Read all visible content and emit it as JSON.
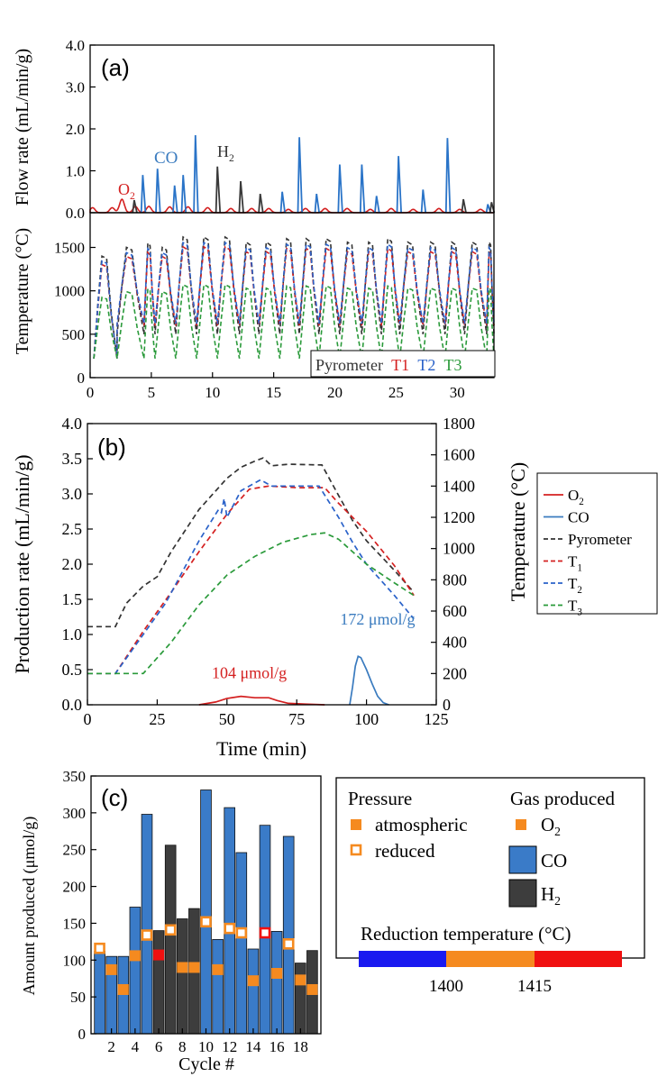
{
  "chart_data": [
    {
      "panel": "(a)",
      "type": "line",
      "xlim": [
        0,
        33
      ],
      "x_ticks": [
        0,
        5,
        10,
        15,
        20,
        25,
        30
      ],
      "top_subplot": {
        "ylabel": "Flow rate (mL/min/g)",
        "ylim": [
          0,
          4
        ],
        "y_ticks": [
          "0.0",
          "1.0",
          "2.0",
          "3.0",
          "4.0"
        ],
        "labels": {
          "o2": "O2",
          "co": "CO",
          "h2": "H2"
        },
        "o2_bumps": [
          {
            "x": 0.2,
            "h": 0.12
          },
          {
            "x": 1.8,
            "h": 0.12
          },
          {
            "x": 2.6,
            "h": 0.32
          },
          {
            "x": 3.7,
            "h": 0.15
          },
          {
            "x": 4.8,
            "h": 0.15
          },
          {
            "x": 6.5,
            "h": 0.14
          },
          {
            "x": 8.0,
            "h": 0.14
          },
          {
            "x": 9.6,
            "h": 0.12
          },
          {
            "x": 11.5,
            "h": 0.1
          },
          {
            "x": 13.2,
            "h": 0.1
          },
          {
            "x": 14.6,
            "h": 0.1
          },
          {
            "x": 16.2,
            "h": 0.08
          },
          {
            "x": 17.6,
            "h": 0.1
          },
          {
            "x": 19.2,
            "h": 0.1
          },
          {
            "x": 21.0,
            "h": 0.1
          },
          {
            "x": 22.9,
            "h": 0.08
          },
          {
            "x": 24.6,
            "h": 0.1
          },
          {
            "x": 26.4,
            "h": 0.08
          },
          {
            "x": 28.5,
            "h": 0.1
          },
          {
            "x": 30.2,
            "h": 0.08
          },
          {
            "x": 31.9,
            "h": 0.08
          }
        ],
        "co_peaks": [
          {
            "x": 4.3,
            "h": 0.9
          },
          {
            "x": 5.5,
            "h": 1.05
          },
          {
            "x": 6.9,
            "h": 0.65
          },
          {
            "x": 7.6,
            "h": 0.9
          },
          {
            "x": 8.6,
            "h": 1.85
          },
          {
            "x": 15.7,
            "h": 0.5
          },
          {
            "x": 17.1,
            "h": 1.8
          },
          {
            "x": 18.5,
            "h": 0.45
          },
          {
            "x": 20.4,
            "h": 1.15
          },
          {
            "x": 22.2,
            "h": 1.15
          },
          {
            "x": 23.4,
            "h": 0.4
          },
          {
            "x": 25.2,
            "h": 1.35
          },
          {
            "x": 27.2,
            "h": 0.55
          },
          {
            "x": 29.2,
            "h": 1.78
          },
          {
            "x": 32.5,
            "h": 0.2
          }
        ],
        "h2_peaks": [
          {
            "x": 3.6,
            "h": 0.3
          },
          {
            "x": 10.4,
            "h": 1.1
          },
          {
            "x": 12.3,
            "h": 0.75
          },
          {
            "x": 13.9,
            "h": 0.45
          },
          {
            "x": 30.5,
            "h": 0.32
          },
          {
            "x": 32.8,
            "h": 0.25
          }
        ]
      },
      "bottom_subplot": {
        "ylabel": "Temperature (°C)",
        "ylim": [
          0,
          1900
        ],
        "y_ticks": [
          "0",
          "500",
          "1000",
          "1500"
        ],
        "legend": [
          {
            "label": "Pyrometer",
            "color": "#333333"
          },
          {
            "label": "T1",
            "color": "#d42020"
          },
          {
            "label": "T2",
            "color": "#2a62c9"
          },
          {
            "label": "T3",
            "color": "#2a9a3a"
          }
        ],
        "cycles": [
          {
            "x0": 0.3,
            "x1": 2.2,
            "peak": 1400
          },
          {
            "x0": 2.2,
            "x1": 4.4,
            "peak": 1500
          },
          {
            "x0": 4.4,
            "x1": 5.3,
            "peak": 1550
          },
          {
            "x0": 5.3,
            "x1": 7.0,
            "peak": 1500
          },
          {
            "x0": 7.0,
            "x1": 8.7,
            "peak": 1620
          },
          {
            "x0": 8.7,
            "x1": 10.4,
            "peak": 1620
          },
          {
            "x0": 10.4,
            "x1": 12.2,
            "peak": 1620
          },
          {
            "x0": 12.2,
            "x1": 13.8,
            "peak": 1560
          },
          {
            "x0": 13.8,
            "x1": 15.5,
            "peak": 1560
          },
          {
            "x0": 15.5,
            "x1": 17.1,
            "peak": 1600
          },
          {
            "x0": 17.1,
            "x1": 18.7,
            "peak": 1600
          },
          {
            "x0": 18.7,
            "x1": 20.4,
            "peak": 1600
          },
          {
            "x0": 20.4,
            "x1": 22.2,
            "peak": 1560
          },
          {
            "x0": 22.2,
            "x1": 23.8,
            "peak": 1560
          },
          {
            "x0": 23.8,
            "x1": 25.3,
            "peak": 1600
          },
          {
            "x0": 25.3,
            "x1": 27.2,
            "peak": 1560
          },
          {
            "x0": 27.2,
            "x1": 29.0,
            "peak": 1560
          },
          {
            "x0": 29.0,
            "x1": 30.6,
            "peak": 1560
          },
          {
            "x0": 30.6,
            "x1": 32.4,
            "peak": 1560
          },
          {
            "x0": 32.4,
            "x1": 33.0,
            "peak": 1560
          }
        ]
      }
    },
    {
      "panel": "(b)",
      "type": "line",
      "xlabel": "Time (min)",
      "ylabel": "Production rate (mL/min/g)",
      "y2label": "Temperature (°C)",
      "xlim": [
        0,
        125
      ],
      "ylim": [
        0,
        4
      ],
      "y2lim": [
        0,
        1800
      ],
      "x_ticks": [
        "0",
        "25",
        "50",
        "75",
        "100",
        "125"
      ],
      "y_ticks": [
        "0.0",
        "0.5",
        "1.0",
        "1.5",
        "2.0",
        "2.5",
        "3.0",
        "3.5",
        "4.0"
      ],
      "y2_ticks": [
        "0",
        "200",
        "400",
        "600",
        "800",
        "1000",
        "1200",
        "1400",
        "1600",
        "1800"
      ],
      "annotations": [
        {
          "text": "104 μmol/g",
          "x": 58,
          "y": 0.38,
          "color": "#d42020"
        },
        {
          "text": "172 μmol/g",
          "x": 104,
          "y": 1.14,
          "color": "#3a7bbf"
        }
      ],
      "legend": [
        {
          "label": "O2",
          "color": "#d42020",
          "style": "solid"
        },
        {
          "label": "CO",
          "color": "#3a7bbf",
          "style": "solid"
        },
        {
          "label": "Pyrometer",
          "color": "#333333",
          "style": "dashed"
        },
        {
          "label": "T1",
          "color": "#d42020",
          "style": "dashed"
        },
        {
          "label": "T2",
          "color": "#2a62c9",
          "style": "dashed"
        },
        {
          "label": "T3",
          "color": "#2a9a3a",
          "style": "dashed"
        }
      ],
      "series": [
        {
          "name": "O2",
          "axis": "left",
          "points": [
            [
              40,
              0
            ],
            [
              46,
              0.04
            ],
            [
              50,
              0.09
            ],
            [
              55,
              0.12
            ],
            [
              60,
              0.1
            ],
            [
              65,
              0.1
            ],
            [
              68,
              0.06
            ],
            [
              72,
              0.02
            ],
            [
              78,
              0.01
            ],
            [
              85,
              0
            ]
          ]
        },
        {
          "name": "CO",
          "axis": "left",
          "points": [
            [
              94,
              0
            ],
            [
              95,
              0.25
            ],
            [
              96,
              0.55
            ],
            [
              97,
              0.69
            ],
            [
              98,
              0.67
            ],
            [
              100,
              0.5
            ],
            [
              102,
              0.3
            ],
            [
              104,
              0.12
            ],
            [
              106,
              0.03
            ],
            [
              108,
              0
            ]
          ]
        },
        {
          "name": "Pyrometer",
          "axis": "right",
          "points": [
            [
              0,
              500
            ],
            [
              10,
              500
            ],
            [
              14,
              650
            ],
            [
              20,
              760
            ],
            [
              25,
              820
            ],
            [
              30,
              980
            ],
            [
              40,
              1250
            ],
            [
              50,
              1450
            ],
            [
              55,
              1520
            ],
            [
              60,
              1560
            ],
            [
              63,
              1580
            ],
            [
              66,
              1530
            ],
            [
              72,
              1540
            ],
            [
              84,
              1535
            ],
            [
              90,
              1340
            ],
            [
              95,
              1180
            ],
            [
              100,
              1050
            ],
            [
              110,
              860
            ],
            [
              117,
              720
            ]
          ]
        },
        {
          "name": "T1",
          "axis": "right",
          "points": [
            [
              0,
              200
            ],
            [
              10,
              200
            ],
            [
              20,
              470
            ],
            [
              30,
              720
            ],
            [
              40,
              980
            ],
            [
              50,
              1220
            ],
            [
              58,
              1380
            ],
            [
              65,
              1400
            ],
            [
              75,
              1390
            ],
            [
              85,
              1390
            ],
            [
              90,
              1290
            ],
            [
              95,
              1200
            ],
            [
              100,
              1110
            ],
            [
              110,
              890
            ],
            [
              117,
              700
            ]
          ]
        },
        {
          "name": "T2",
          "axis": "right",
          "points": [
            [
              0,
              200
            ],
            [
              10,
              200
            ],
            [
              20,
              450
            ],
            [
              28,
              650
            ],
            [
              40,
              1050
            ],
            [
              47,
              1250
            ],
            [
              48,
              1230
            ],
            [
              49,
              1320
            ],
            [
              50,
              1200
            ],
            [
              55,
              1370
            ],
            [
              62,
              1440
            ],
            [
              66,
              1400
            ],
            [
              75,
              1400
            ],
            [
              83,
              1400
            ],
            [
              90,
              1200
            ],
            [
              95,
              1040
            ],
            [
              100,
              900
            ],
            [
              110,
              700
            ],
            [
              117,
              550
            ]
          ]
        },
        {
          "name": "T3",
          "axis": "right",
          "points": [
            [
              0,
              200
            ],
            [
              20,
              200
            ],
            [
              30,
              400
            ],
            [
              40,
              640
            ],
            [
              50,
              830
            ],
            [
              60,
              950
            ],
            [
              70,
              1040
            ],
            [
              80,
              1090
            ],
            [
              85,
              1100
            ],
            [
              90,
              1060
            ],
            [
              100,
              900
            ],
            [
              110,
              780
            ],
            [
              117,
              700
            ]
          ]
        }
      ]
    },
    {
      "panel": "(c)",
      "type": "bar",
      "xlabel": "Cycle #",
      "ylabel": "Amount produced (μmol/g)",
      "ylim": [
        0,
        350
      ],
      "y_ticks": [
        "0",
        "50",
        "100",
        "150",
        "200",
        "250",
        "300",
        "350"
      ],
      "x_ticks": [
        "2",
        "4",
        "6",
        "8",
        "10",
        "12",
        "14",
        "16",
        "18"
      ],
      "categories": [
        1,
        2,
        3,
        4,
        5,
        6,
        7,
        8,
        9,
        10,
        11,
        12,
        13,
        14,
        15,
        16,
        17,
        18,
        19
      ],
      "bars": [
        {
          "gas": "CO",
          "value": 112
        },
        {
          "gas": "CO",
          "value": 105
        },
        {
          "gas": "CO",
          "value": 105
        },
        {
          "gas": "CO",
          "value": 172
        },
        {
          "gas": "CO",
          "value": 298
        },
        {
          "gas": "H2",
          "value": 140
        },
        {
          "gas": "H2",
          "value": 256
        },
        {
          "gas": "H2",
          "value": 156
        },
        {
          "gas": "H2",
          "value": 170
        },
        {
          "gas": "CO",
          "value": 331
        },
        {
          "gas": "CO",
          "value": 128
        },
        {
          "gas": "CO",
          "value": 307
        },
        {
          "gas": "CO",
          "value": 246
        },
        {
          "gas": "CO",
          "value": 115
        },
        {
          "gas": "CO",
          "value": 283
        },
        {
          "gas": "CO",
          "value": 139
        },
        {
          "gas": "CO",
          "value": 268
        },
        {
          "gas": "H2",
          "value": 96
        },
        {
          "gas": "H2",
          "value": 113
        }
      ],
      "o2_markers": [
        {
          "value": 116,
          "pressure": "reduced",
          "temp": "low"
        },
        {
          "value": 87,
          "pressure": "atmospheric",
          "temp": "mid"
        },
        {
          "value": 60,
          "pressure": "atmospheric",
          "temp": "mid"
        },
        {
          "value": 106,
          "pressure": "atmospheric",
          "temp": "mid"
        },
        {
          "value": 134,
          "pressure": "reduced",
          "temp": "mid"
        },
        {
          "value": 107,
          "pressure": "atmospheric",
          "temp": "high"
        },
        {
          "value": 141,
          "pressure": "reduced",
          "temp": "mid"
        },
        {
          "value": 90,
          "pressure": "atmospheric",
          "temp": "mid"
        },
        {
          "value": 90,
          "pressure": "atmospheric",
          "temp": "mid"
        },
        {
          "value": 152,
          "pressure": "reduced",
          "temp": "mid"
        },
        {
          "value": 87,
          "pressure": "atmospheric",
          "temp": "mid"
        },
        {
          "value": 143,
          "pressure": "reduced",
          "temp": "mid"
        },
        {
          "value": 137,
          "pressure": "reduced",
          "temp": "mid"
        },
        {
          "value": 72,
          "pressure": "atmospheric",
          "temp": "mid"
        },
        {
          "value": 137,
          "pressure": "reduced",
          "temp": "high"
        },
        {
          "value": 82,
          "pressure": "atmospheric",
          "temp": "mid"
        },
        {
          "value": 122,
          "pressure": "reduced",
          "temp": "mid"
        },
        {
          "value": 73,
          "pressure": "atmospheric",
          "temp": "mid"
        },
        {
          "value": 60,
          "pressure": "atmospheric",
          "temp": "mid"
        }
      ],
      "legend": {
        "pressure_title": "Pressure",
        "pressure_items": [
          "atmospheric",
          "reduced"
        ],
        "gas_title": "Gas produced",
        "gas_items": [
          "O2",
          "CO",
          "H2"
        ],
        "temp_title": "Reduction temperature (°C)",
        "temp_ticks": [
          "1400",
          "1415"
        ]
      },
      "colors": {
        "co": "#3a7bc8",
        "h2": "#3d3d3d",
        "o2_marker": "#f58a1f",
        "temp_low": "#1a1af0",
        "temp_mid": "#f58a1f",
        "temp_high": "#f01010"
      }
    }
  ]
}
